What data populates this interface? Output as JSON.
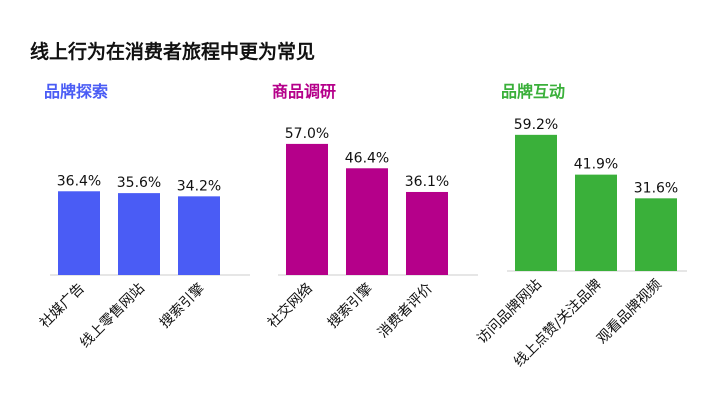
{
  "title": "线上行为在消费者旅程中更为常见",
  "chart_data": [
    {
      "type": "bar",
      "title": "品牌探索",
      "color": "#4a5cf5",
      "categories": [
        "社媒广告",
        "线上零售网站",
        "搜索引擎"
      ],
      "values": [
        36.4,
        35.6,
        34.2
      ],
      "value_labels": [
        "36.4%",
        "35.6%",
        "34.2%"
      ],
      "ylim": [
        0,
        60
      ],
      "grid": false
    },
    {
      "type": "bar",
      "title": "商品调研",
      "color": "#b5008a",
      "categories": [
        "社交网络",
        "搜索引擎",
        "消费者评价"
      ],
      "values": [
        57.0,
        46.4,
        36.1
      ],
      "value_labels": [
        "57.0%",
        "46.4%",
        "36.1%"
      ],
      "ylim": [
        0,
        60
      ],
      "grid": false
    },
    {
      "type": "bar",
      "title": "品牌互动",
      "color": "#3ab03a",
      "categories": [
        "访问品牌网站",
        "线上点赞/关注品牌",
        "观看品牌视频"
      ],
      "values": [
        59.2,
        41.9,
        31.6
      ],
      "value_labels": [
        "59.2%",
        "41.9%",
        "31.6%"
      ],
      "ylim": [
        0,
        60
      ],
      "grid": false
    }
  ]
}
